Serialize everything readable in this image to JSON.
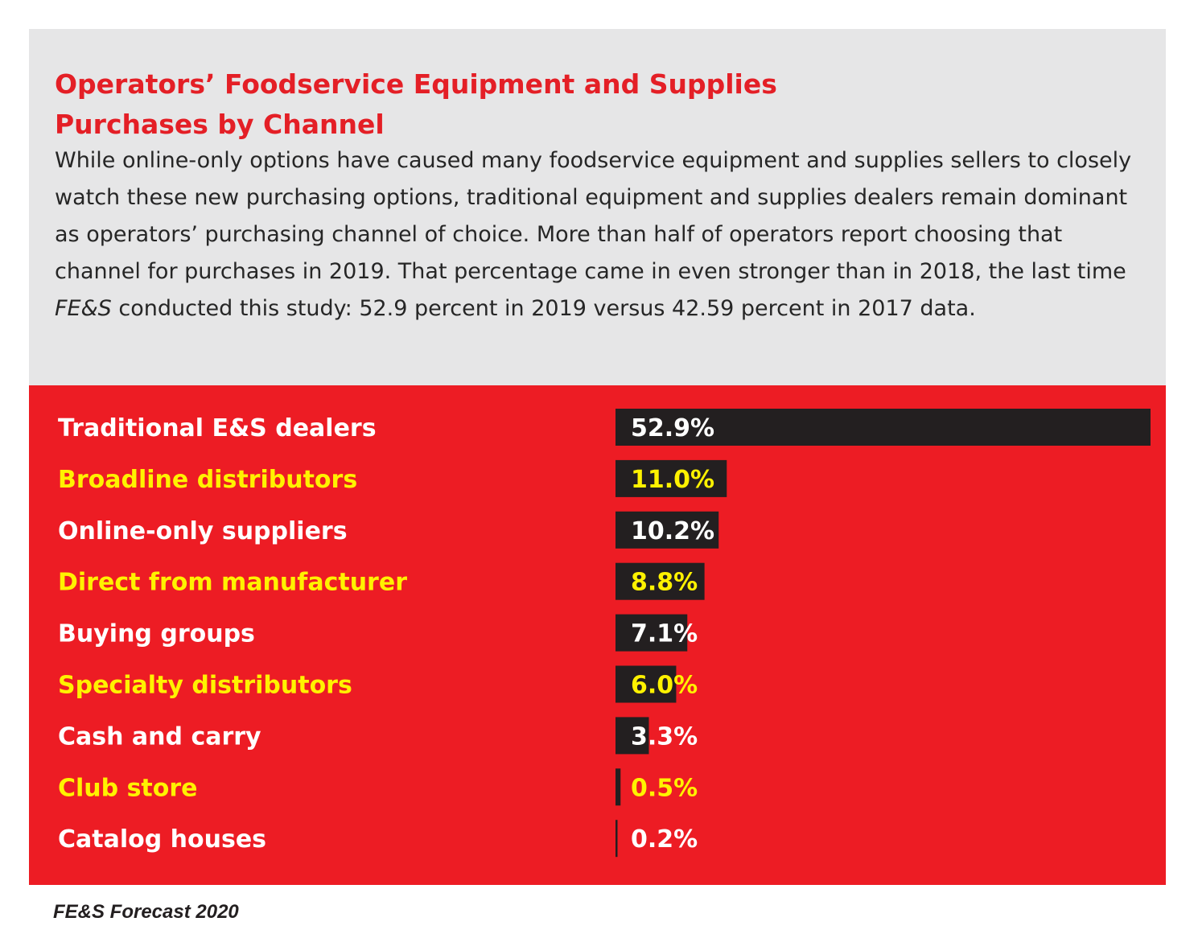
{
  "header": {
    "title_line1": "Operators’ Foodservice Equipment and Supplies",
    "title_line2": "Purchases by Channel",
    "desc_part1": "While online-only options have caused many foodservice equipment and supplies sellers to closely watch these new purchasing options, traditional equipment and supplies dealers remain dominant as operators’ purchasing channel of choice. More than half of operators report choosing that channel for purchases in 2019. That percentage came in even stronger than in 2018, the last time ",
    "desc_italic": "FE&S",
    "desc_part2": " conducted this study: 52.9 percent in 2019 versus 42.59 percent in 2017 data."
  },
  "chart_data": {
    "type": "bar",
    "orientation": "horizontal",
    "categories": [
      "Traditional E&S dealers",
      "Broadline distributors",
      "Online-only suppliers",
      "Direct from manufacturer",
      "Buying groups",
      "Specialty distributors",
      "Cash and carry",
      "Club store",
      "Catalog houses"
    ],
    "values": [
      52.9,
      11.0,
      10.2,
      8.8,
      7.1,
      6.0,
      3.3,
      0.5,
      0.2
    ],
    "value_labels": [
      "52.9%",
      "11.0%",
      "10.2%",
      "8.8%",
      "7.1%",
      "6.0%",
      "3.3%",
      "0.5%",
      "0.2%"
    ],
    "unit": "%",
    "xlim": [
      0,
      52.9
    ],
    "grid": false,
    "colors": {
      "bar": "#231f20",
      "label_white": "#ffffff",
      "label_yellow": "#fff200",
      "background": "#ed1c24"
    }
  },
  "footer": {
    "source": "FE&S Forecast 2020"
  }
}
